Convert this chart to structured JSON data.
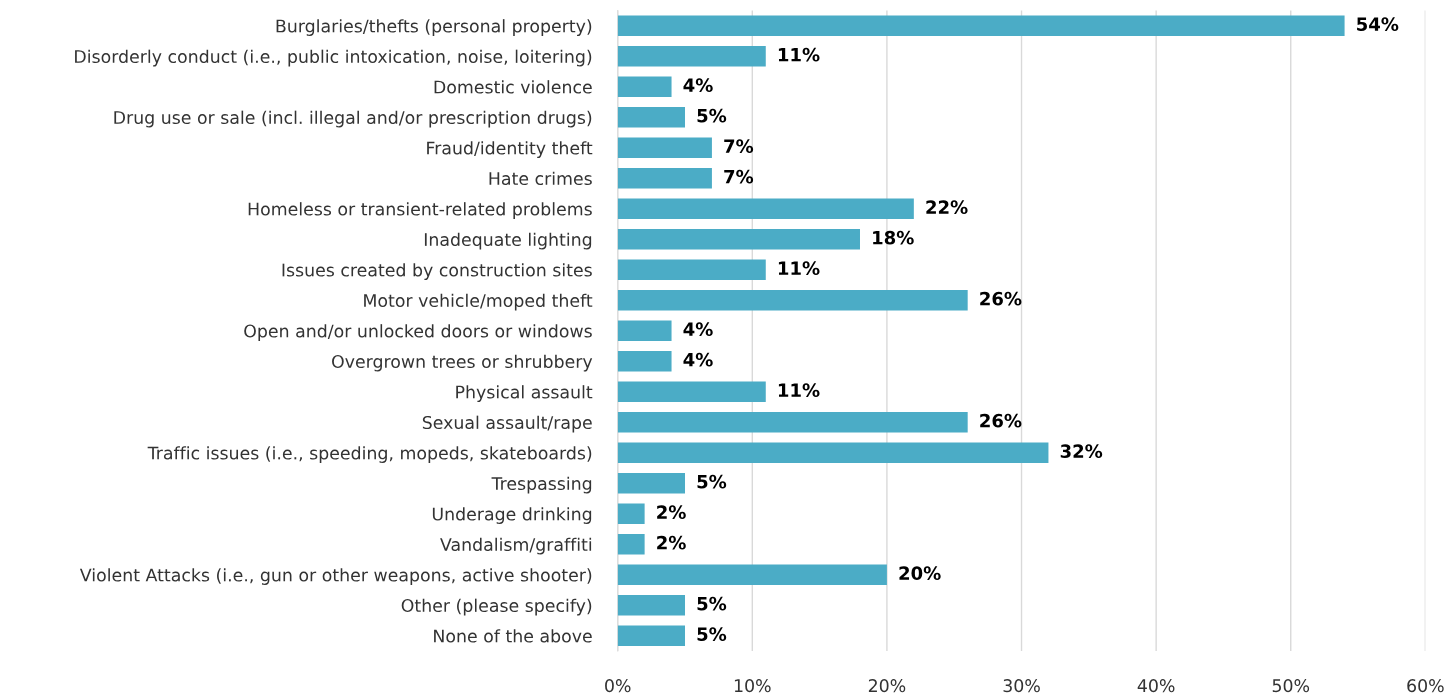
{
  "chart_data": {
    "type": "bar",
    "orientation": "horizontal",
    "categories": [
      "Burglaries/thefts (personal property)",
      "Disorderly conduct (i.e., public intoxication, noise, loitering)",
      "Domestic violence",
      "Drug use or sale (incl. illegal and/or prescription drugs)",
      "Fraud/identity theft",
      "Hate crimes",
      "Homeless or transient-related problems",
      "Inadequate lighting",
      "Issues created by construction sites",
      "Motor vehicle/moped theft",
      "Open and/or unlocked doors or windows",
      "Overgrown trees or shrubbery",
      "Physical assault",
      "Sexual assault/rape",
      "Traffic issues (i.e., speeding, mopeds, skateboards)",
      "Trespassing",
      "Underage drinking",
      "Vandalism/graffiti",
      "Violent Attacks (i.e., gun or other weapons, active shooter)",
      "Other (please specify)",
      "None of the above"
    ],
    "values": [
      54,
      11,
      4,
      5,
      7,
      7,
      22,
      18,
      11,
      26,
      4,
      4,
      11,
      26,
      32,
      5,
      2,
      2,
      20,
      5,
      5
    ],
    "value_labels": [
      "54%",
      "11%",
      "4%",
      "5%",
      "7%",
      "7%",
      "22%",
      "18%",
      "11%",
      "26%",
      "4%",
      "4%",
      "11%",
      "26%",
      "32%",
      "5%",
      "2%",
      "2%",
      "20%",
      "5%",
      "5%"
    ],
    "color": "#4bacc6",
    "xlim": [
      0,
      60
    ],
    "xticks": [
      {
        "value": 0,
        "label": "0%"
      },
      {
        "value": 10,
        "label": "10%"
      },
      {
        "value": 20,
        "label": "20%"
      },
      {
        "value": 30,
        "label": "30%"
      },
      {
        "value": 40,
        "label": "40%"
      },
      {
        "value": 50,
        "label": "50%"
      },
      {
        "value": 60,
        "label": "60%"
      }
    ],
    "grid": "x",
    "legend": false
  }
}
